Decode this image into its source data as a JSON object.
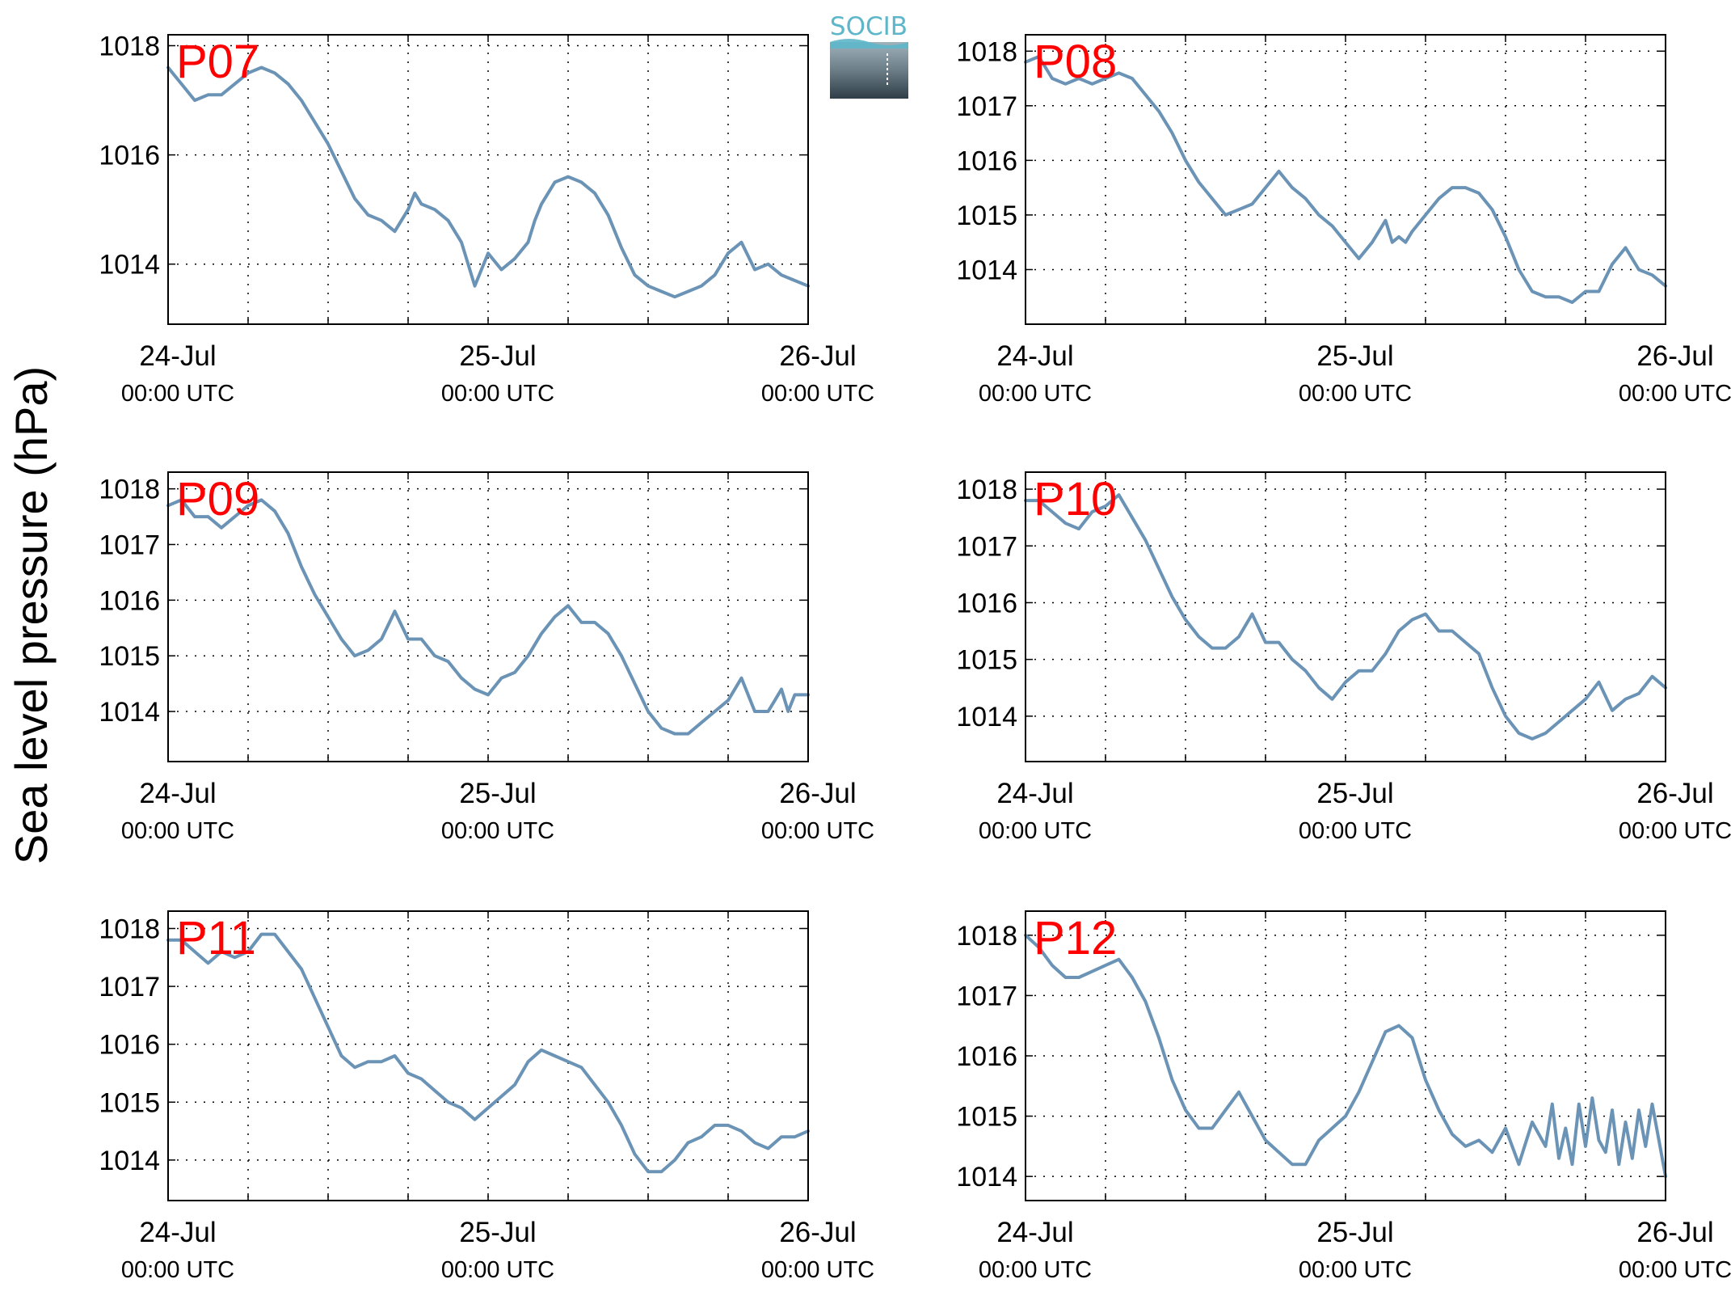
{
  "figure": {
    "ylabel": "Sea level pressure (hPa)",
    "logo_text": "SOCIB"
  },
  "colors": {
    "line": "#6a93b6",
    "panel_title": "#ff0000",
    "logo_accent": "#5db6ca"
  },
  "chart_data": [
    {
      "type": "line",
      "title": "P07",
      "x_tick_labels": [
        {
          "date": "24-Jul",
          "time": "00:00 UTC"
        },
        {
          "date": "25-Jul",
          "time": "00:00 UTC"
        },
        {
          "date": "26-Jul",
          "time": "00:00 UTC"
        }
      ],
      "xlim": [
        0,
        48
      ],
      "ylim": [
        1012.9,
        1018.2
      ],
      "yticks": [
        1014,
        1016,
        1018
      ],
      "grid": true,
      "series": [
        {
          "x": [
            0,
            1,
            2,
            3,
            4,
            5,
            6,
            7,
            8,
            9,
            10,
            11,
            12,
            13,
            14,
            15,
            16,
            17,
            18,
            18.5,
            19,
            20,
            21,
            22,
            22.5,
            23,
            24,
            25,
            26,
            27,
            27.5,
            28,
            29,
            30,
            31,
            32,
            33,
            34,
            35,
            36,
            37,
            38,
            39,
            40,
            41,
            42,
            43,
            44,
            45,
            45.5,
            46,
            47,
            48
          ],
          "values": [
            1017.6,
            1017.3,
            1017.0,
            1017.1,
            1017.1,
            1017.3,
            1017.5,
            1017.6,
            1017.5,
            1017.3,
            1017.0,
            1016.6,
            1016.2,
            1015.7,
            1015.2,
            1014.9,
            1014.8,
            1014.6,
            1015.0,
            1015.3,
            1015.1,
            1015.0,
            1014.8,
            1014.4,
            1014.0,
            1013.6,
            1014.2,
            1013.9,
            1014.1,
            1014.4,
            1014.8,
            1015.1,
            1015.5,
            1015.6,
            1015.5,
            1015.3,
            1014.9,
            1014.3,
            1013.8,
            1013.6,
            1013.5,
            1013.4,
            1013.5,
            1013.6,
            1013.8,
            1014.2,
            1014.4,
            1013.9,
            1014.0,
            1013.9,
            1013.8,
            1013.7,
            1013.6
          ]
        }
      ]
    },
    {
      "type": "line",
      "title": "P08",
      "x_tick_labels": [
        {
          "date": "24-Jul",
          "time": "00:00 UTC"
        },
        {
          "date": "25-Jul",
          "time": "00:00 UTC"
        },
        {
          "date": "26-Jul",
          "time": "00:00 UTC"
        }
      ],
      "xlim": [
        0,
        48
      ],
      "ylim": [
        1013.0,
        1018.3
      ],
      "yticks": [
        1014,
        1015,
        1016,
        1017,
        1018
      ],
      "grid": true,
      "series": [
        {
          "x": [
            0,
            1,
            2,
            3,
            4,
            5,
            6,
            7,
            8,
            9,
            10,
            11,
            12,
            13,
            14,
            15,
            16,
            17,
            18,
            19,
            20,
            21,
            22,
            23,
            24,
            25,
            26,
            27,
            27.5,
            28,
            28.5,
            29,
            30,
            31,
            32,
            33,
            34,
            35,
            36,
            37,
            38,
            39,
            40,
            41,
            42,
            43,
            44,
            45,
            46,
            47,
            48
          ],
          "values": [
            1017.8,
            1017.9,
            1017.5,
            1017.4,
            1017.5,
            1017.4,
            1017.5,
            1017.6,
            1017.5,
            1017.2,
            1016.9,
            1016.5,
            1016.0,
            1015.6,
            1015.3,
            1015.0,
            1015.1,
            1015.2,
            1015.5,
            1015.8,
            1015.5,
            1015.3,
            1015.0,
            1014.8,
            1014.5,
            1014.2,
            1014.5,
            1014.9,
            1014.5,
            1014.6,
            1014.5,
            1014.7,
            1015.0,
            1015.3,
            1015.5,
            1015.5,
            1015.4,
            1015.1,
            1014.6,
            1014.0,
            1013.6,
            1013.5,
            1013.5,
            1013.4,
            1013.6,
            1013.6,
            1014.1,
            1014.4,
            1014.0,
            1013.9,
            1013.7
          ]
        }
      ]
    },
    {
      "type": "line",
      "title": "P09",
      "x_tick_labels": [
        {
          "date": "24-Jul",
          "time": "00:00 UTC"
        },
        {
          "date": "25-Jul",
          "time": "00:00 UTC"
        },
        {
          "date": "26-Jul",
          "time": "00:00 UTC"
        }
      ],
      "xlim": [
        0,
        48
      ],
      "ylim": [
        1013.1,
        1018.3
      ],
      "yticks": [
        1014,
        1015,
        1016,
        1017,
        1018
      ],
      "grid": true,
      "series": [
        {
          "x": [
            0,
            1,
            2,
            3,
            4,
            5,
            6,
            7,
            8,
            9,
            10,
            11,
            12,
            13,
            14,
            15,
            16,
            17,
            18,
            19,
            20,
            21,
            22,
            23,
            24,
            25,
            26,
            27,
            28,
            29,
            30,
            31,
            32,
            33,
            34,
            35,
            36,
            37,
            38,
            39,
            40,
            41,
            42,
            43,
            44,
            45,
            45.5,
            46,
            46.5,
            47,
            48
          ],
          "values": [
            1017.7,
            1017.8,
            1017.5,
            1017.5,
            1017.3,
            1017.5,
            1017.7,
            1017.8,
            1017.6,
            1017.2,
            1016.6,
            1016.1,
            1015.7,
            1015.3,
            1015.0,
            1015.1,
            1015.3,
            1015.8,
            1015.3,
            1015.3,
            1015.0,
            1014.9,
            1014.6,
            1014.4,
            1014.3,
            1014.6,
            1014.7,
            1015.0,
            1015.4,
            1015.7,
            1015.9,
            1015.6,
            1015.6,
            1015.4,
            1015.0,
            1014.5,
            1014.0,
            1013.7,
            1013.6,
            1013.6,
            1013.8,
            1014.0,
            1014.2,
            1014.6,
            1014.0,
            1014.0,
            1014.2,
            1014.4,
            1014.0,
            1014.3,
            1014.3
          ]
        }
      ]
    },
    {
      "type": "line",
      "title": "P10",
      "x_tick_labels": [
        {
          "date": "24-Jul",
          "time": "00:00 UTC"
        },
        {
          "date": "25-Jul",
          "time": "00:00 UTC"
        },
        {
          "date": "26-Jul",
          "time": "00:00 UTC"
        }
      ],
      "xlim": [
        0,
        48
      ],
      "ylim": [
        1013.2,
        1018.3
      ],
      "yticks": [
        1014,
        1015,
        1016,
        1017,
        1018
      ],
      "grid": true,
      "series": [
        {
          "x": [
            0,
            1,
            2,
            3,
            4,
            5,
            6,
            7,
            8,
            9,
            10,
            11,
            12,
            13,
            14,
            15,
            16,
            17,
            18,
            19,
            20,
            21,
            22,
            23,
            24,
            25,
            26,
            27,
            28,
            29,
            30,
            31,
            32,
            33,
            34,
            35,
            36,
            37,
            38,
            39,
            40,
            41,
            42,
            43,
            44,
            45,
            46,
            47,
            47.5,
            48
          ],
          "values": [
            1017.8,
            1017.8,
            1017.6,
            1017.4,
            1017.3,
            1017.6,
            1017.7,
            1017.9,
            1017.5,
            1017.1,
            1016.6,
            1016.1,
            1015.7,
            1015.4,
            1015.2,
            1015.2,
            1015.4,
            1015.8,
            1015.3,
            1015.3,
            1015.0,
            1014.8,
            1014.5,
            1014.3,
            1014.6,
            1014.8,
            1014.8,
            1015.1,
            1015.5,
            1015.7,
            1015.8,
            1015.5,
            1015.5,
            1015.3,
            1015.1,
            1014.5,
            1014.0,
            1013.7,
            1013.6,
            1013.7,
            1013.9,
            1014.1,
            1014.3,
            1014.6,
            1014.1,
            1014.3,
            1014.4,
            1014.7,
            1014.6,
            1014.5
          ]
        }
      ]
    },
    {
      "type": "line",
      "title": "P11",
      "x_tick_labels": [
        {
          "date": "24-Jul",
          "time": "00:00 UTC"
        },
        {
          "date": "25-Jul",
          "time": "00:00 UTC"
        },
        {
          "date": "26-Jul",
          "time": "00:00 UTC"
        }
      ],
      "xlim": [
        0,
        48
      ],
      "ylim": [
        1013.3,
        1018.3
      ],
      "yticks": [
        1014,
        1015,
        1016,
        1017,
        1018
      ],
      "grid": true,
      "series": [
        {
          "x": [
            0,
            1,
            2,
            3,
            4,
            5,
            6,
            7,
            8,
            9,
            10,
            11,
            12,
            13,
            14,
            15,
            16,
            17,
            18,
            19,
            20,
            21,
            22,
            23,
            24,
            25,
            26,
            27,
            28,
            29,
            30,
            31,
            32,
            33,
            34,
            35,
            36,
            37,
            38,
            39,
            40,
            41,
            42,
            43,
            44,
            45,
            46,
            47,
            48
          ],
          "values": [
            1017.8,
            1017.8,
            1017.6,
            1017.4,
            1017.6,
            1017.5,
            1017.6,
            1017.9,
            1017.9,
            1017.6,
            1017.3,
            1016.8,
            1016.3,
            1015.8,
            1015.6,
            1015.7,
            1015.7,
            1015.8,
            1015.5,
            1015.4,
            1015.2,
            1015.0,
            1014.9,
            1014.7,
            1014.9,
            1015.1,
            1015.3,
            1015.7,
            1015.9,
            1015.8,
            1015.7,
            1015.6,
            1015.3,
            1015.0,
            1014.6,
            1014.1,
            1013.8,
            1013.8,
            1014.0,
            1014.3,
            1014.4,
            1014.6,
            1014.6,
            1014.5,
            1014.3,
            1014.2,
            1014.4,
            1014.4,
            1014.5
          ]
        }
      ]
    },
    {
      "type": "line",
      "title": "P12",
      "x_tick_labels": [
        {
          "date": "24-Jul",
          "time": "00:00 UTC"
        },
        {
          "date": "25-Jul",
          "time": "00:00 UTC"
        },
        {
          "date": "26-Jul",
          "time": "00:00 UTC"
        }
      ],
      "xlim": [
        0,
        48
      ],
      "ylim": [
        1013.6,
        1018.4
      ],
      "yticks": [
        1014,
        1015,
        1016,
        1017,
        1018
      ],
      "grid": true,
      "series": [
        {
          "x": [
            0,
            1,
            2,
            3,
            4,
            5,
            6,
            7,
            8,
            9,
            10,
            11,
            12,
            13,
            14,
            15,
            16,
            17,
            18,
            19,
            20,
            21,
            22,
            23,
            24,
            25,
            26,
            27,
            28,
            29,
            30,
            31,
            32,
            33,
            34,
            35,
            36,
            37,
            38,
            39,
            39.5,
            40,
            40.5,
            41,
            41.5,
            42,
            42.5,
            43,
            43.5,
            44,
            44.5,
            45,
            45.5,
            46,
            46.5,
            47,
            47.5,
            48
          ],
          "values": [
            1018.0,
            1017.8,
            1017.5,
            1017.3,
            1017.3,
            1017.4,
            1017.5,
            1017.6,
            1017.3,
            1016.9,
            1016.3,
            1015.6,
            1015.1,
            1014.8,
            1014.8,
            1015.1,
            1015.4,
            1015.0,
            1014.6,
            1014.4,
            1014.2,
            1014.2,
            1014.6,
            1014.8,
            1015.0,
            1015.4,
            1015.9,
            1016.4,
            1016.5,
            1016.3,
            1015.6,
            1015.1,
            1014.7,
            1014.5,
            1014.6,
            1014.4,
            1014.8,
            1014.2,
            1014.9,
            1014.5,
            1015.2,
            1014.3,
            1014.8,
            1014.2,
            1015.2,
            1014.5,
            1015.3,
            1014.6,
            1014.4,
            1015.1,
            1014.2,
            1014.9,
            1014.3,
            1015.1,
            1014.5,
            1015.2,
            1014.6,
            1014.0
          ]
        }
      ]
    }
  ]
}
